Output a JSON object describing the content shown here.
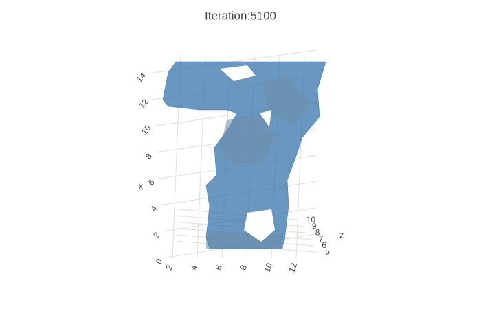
{
  "chart_data": {
    "type": "isosurface",
    "title": "Iteration:5100",
    "xaxis_title": "x",
    "zaxis_title": "z",
    "xlim": [
      0,
      15
    ],
    "xticks": [
      0,
      2,
      4,
      6,
      8,
      10,
      12,
      14
    ],
    "ylim": [
      1.5,
      13
    ],
    "yticks": [
      2,
      4,
      6,
      8,
      10,
      12
    ],
    "zlim": [
      4.5,
      10.5
    ],
    "zticks": [
      5,
      6,
      7,
      8,
      9,
      10
    ],
    "color": "#2f6fa6",
    "grid": true
  }
}
